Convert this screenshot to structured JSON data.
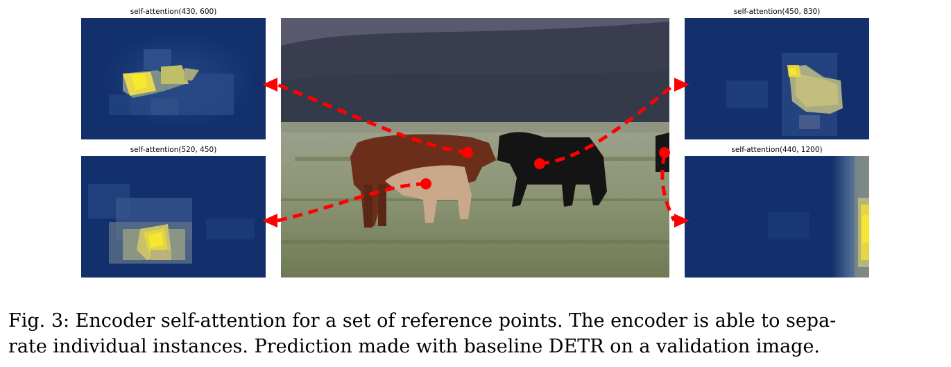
{
  "panels": [
    {
      "title": "self-attention(430, 600)"
    },
    {
      "title": "self-attention(520, 450)"
    },
    {
      "title": "self-attention(450, 830)"
    },
    {
      "title": "self-attention(440, 1200)"
    }
  ],
  "colors": {
    "heat_low": "#0f2f6e",
    "heat_mid": "#5a78a0",
    "heat_high": "#f5e630",
    "arrow": "#ff0000",
    "point": "#ff0000"
  },
  "caption": {
    "line1": "Fig. 3: Encoder self-attention for a set of reference points. The encoder is able to sepa-",
    "line2": "rate individual instances. Prediction made with baseline DETR on a validation image."
  }
}
